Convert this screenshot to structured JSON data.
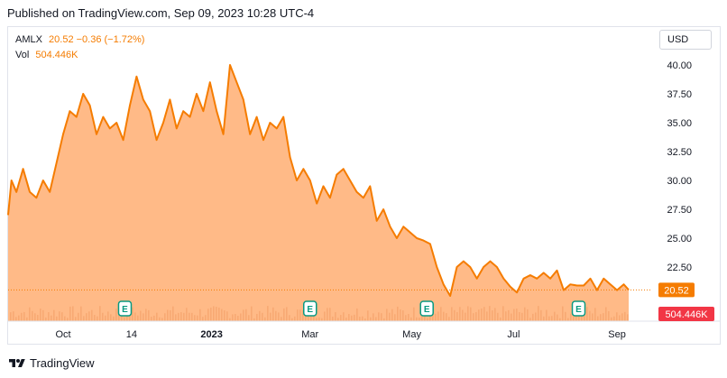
{
  "header": {
    "published": "Published on TradingView.com, Sep 09, 2023 10:28 UTC-4"
  },
  "legend": {
    "symbol": "AMLX",
    "last": "20.52",
    "change": "−0.36 (−1.72%)",
    "vol_label": "Vol",
    "vol_value": "504.446K"
  },
  "toolbar": {
    "currency": "USD"
  },
  "footer": {
    "brand": "TradingView"
  },
  "colors": {
    "line": "#f57c00",
    "fill": "#ffb27a",
    "badge_price": "#f57c00",
    "badge_volume": "#f23645",
    "earnings": "#089981"
  },
  "chart_data": {
    "type": "area",
    "y_axis": {
      "range": [
        19.0,
        42.0
      ],
      "ticks": [
        "40.00",
        "37.50",
        "35.00",
        "32.50",
        "30.00",
        "27.50",
        "25.00",
        "22.50"
      ],
      "position": "right"
    },
    "x_axis": {
      "ticks": [
        "Oct",
        "14",
        "2023",
        "Mar",
        "May",
        "Jul",
        "Sep"
      ],
      "bold_tick": "2023"
    },
    "price_badge": "20.52",
    "volume_badge": "504.446K",
    "earnings_marker": "E",
    "earnings_dates": [
      "2022-11-10",
      "2023-03-01",
      "2023-05-10",
      "2023-08-09"
    ],
    "series": [
      {
        "x": [
          "2022-09-01",
          "2022-09-03",
          "2022-09-06",
          "2022-09-10",
          "2022-09-14",
          "2022-09-18",
          "2022-09-22",
          "2022-09-26",
          "2022-09-30",
          "2022-10-04",
          "2022-10-08",
          "2022-10-12",
          "2022-10-16",
          "2022-10-20",
          "2022-10-24",
          "2022-10-28",
          "2022-11-01",
          "2022-11-05",
          "2022-11-09",
          "2022-11-13",
          "2022-11-17",
          "2022-11-21",
          "2022-11-25",
          "2022-11-29",
          "2022-12-03",
          "2022-12-07",
          "2022-12-11",
          "2022-12-15",
          "2022-12-19",
          "2022-12-23",
          "2022-12-27",
          "2022-12-31",
          "2023-01-04",
          "2023-01-08",
          "2023-01-12",
          "2023-01-16",
          "2023-01-20",
          "2023-01-24",
          "2023-01-28",
          "2023-02-01",
          "2023-02-05",
          "2023-02-09",
          "2023-02-13",
          "2023-02-17",
          "2023-02-21",
          "2023-02-25",
          "2023-03-01",
          "2023-03-05",
          "2023-03-09",
          "2023-03-13",
          "2023-03-17",
          "2023-03-21",
          "2023-03-25",
          "2023-03-29",
          "2023-04-02",
          "2023-04-06",
          "2023-04-10",
          "2023-04-14",
          "2023-04-18",
          "2023-04-22",
          "2023-04-26",
          "2023-04-30",
          "2023-05-04",
          "2023-05-08",
          "2023-05-12",
          "2023-05-16",
          "2023-05-20",
          "2023-05-24",
          "2023-05-28",
          "2023-06-01",
          "2023-06-05",
          "2023-06-09",
          "2023-06-13",
          "2023-06-17",
          "2023-06-21",
          "2023-06-25",
          "2023-06-29",
          "2023-07-03",
          "2023-07-07",
          "2023-07-11",
          "2023-07-15",
          "2023-07-19",
          "2023-07-23",
          "2023-07-27",
          "2023-07-31",
          "2023-08-04",
          "2023-08-08",
          "2023-08-12",
          "2023-08-16",
          "2023-08-20",
          "2023-08-24",
          "2023-08-28",
          "2023-09-01",
          "2023-09-05",
          "2023-09-08"
        ],
        "values": [
          27.0,
          30.0,
          29.0,
          31.0,
          29.0,
          28.5,
          30.0,
          29.0,
          31.5,
          34.0,
          36.0,
          35.5,
          37.5,
          36.5,
          34.0,
          35.5,
          34.5,
          35.0,
          33.5,
          36.5,
          39.0,
          37.0,
          36.0,
          33.5,
          35.0,
          37.0,
          34.5,
          36.0,
          35.5,
          37.5,
          36.0,
          38.5,
          36.0,
          34.0,
          40.0,
          38.5,
          37.0,
          34.0,
          35.5,
          33.5,
          35.0,
          34.5,
          35.5,
          32.0,
          30.0,
          31.0,
          30.0,
          28.0,
          29.5,
          28.5,
          30.5,
          31.0,
          30.0,
          29.0,
          28.5,
          29.5,
          26.5,
          27.5,
          26.0,
          25.0,
          26.0,
          25.5,
          25.0,
          24.8,
          24.5,
          22.5,
          21.0,
          20.0,
          22.5,
          23.0,
          22.5,
          21.5,
          22.5,
          23.0,
          22.5,
          21.5,
          20.8,
          20.3,
          21.5,
          21.8,
          21.5,
          22.0,
          21.5,
          22.2,
          20.5,
          21.0,
          20.9,
          20.9,
          21.5,
          20.5,
          21.5,
          21.0,
          20.5,
          21.0,
          20.52
        ]
      }
    ]
  }
}
